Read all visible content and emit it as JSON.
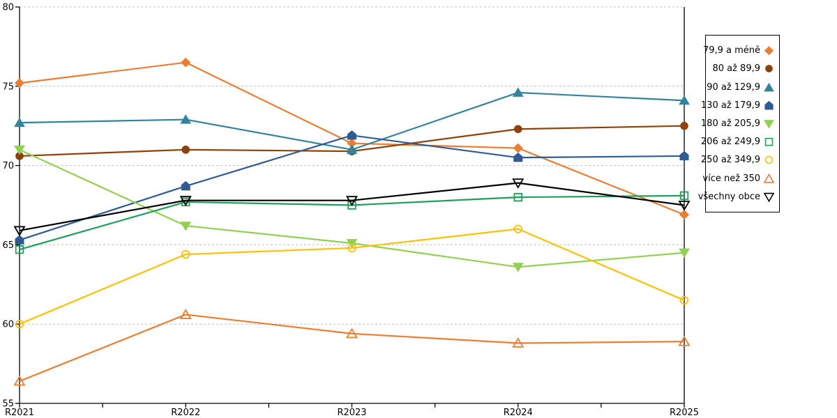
{
  "chart_data": {
    "type": "line",
    "title": "",
    "xlabel": "",
    "ylabel": "",
    "categories": [
      "R2021",
      "R2022",
      "R2023",
      "R2024",
      "R2025"
    ],
    "series": [
      {
        "name": "79,9 a méně",
        "color": "#ED7D31",
        "marker": "diamond",
        "fill": "solid",
        "values": [
          75.2,
          76.5,
          71.4,
          71.1,
          66.9
        ]
      },
      {
        "name": "80 až 89,9",
        "color": "#8F4108",
        "marker": "circle",
        "fill": "solid",
        "values": [
          70.6,
          71.0,
          70.9,
          72.3,
          72.5
        ]
      },
      {
        "name": "90 až 129,9",
        "color": "#31849B",
        "marker": "triangle-up",
        "fill": "solid",
        "values": [
          72.7,
          72.9,
          71.0,
          74.6,
          74.1
        ]
      },
      {
        "name": "130 až 179,9",
        "color": "#2F5B95",
        "marker": "pentagon",
        "fill": "solid",
        "values": [
          65.3,
          68.7,
          71.9,
          70.5,
          70.6
        ]
      },
      {
        "name": "180 až 205,9",
        "color": "#92D050",
        "marker": "triangle-down",
        "fill": "solid",
        "values": [
          71.0,
          66.2,
          65.1,
          63.6,
          64.5
        ]
      },
      {
        "name": "206 až 249,9",
        "color": "#1FA05A",
        "marker": "square",
        "fill": "hollow",
        "values": [
          64.7,
          67.7,
          67.5,
          68.0,
          68.1
        ]
      },
      {
        "name": "250 až 349,9",
        "color": "#FFC000",
        "marker": "circle",
        "fill": "hollow",
        "values": [
          60.0,
          64.4,
          64.8,
          66.0,
          61.5
        ]
      },
      {
        "name": "více než 350",
        "color": "#ED7D31",
        "marker": "triangle-up",
        "fill": "hollow",
        "values": [
          56.4,
          60.6,
          59.4,
          58.8,
          58.9
        ]
      },
      {
        "name": "všechny obce",
        "color": "#000000",
        "marker": "triangle-down",
        "fill": "hollow",
        "values": [
          65.9,
          67.8,
          67.8,
          68.9,
          67.5
        ]
      }
    ],
    "ylim": [
      55,
      80
    ],
    "ytick_labels": [
      "55",
      "60",
      "65",
      "70",
      "75",
      "80"
    ],
    "grid": "horizontal-dashed",
    "legend_position": "right",
    "colors": {
      "gridline": "#BFBFBF",
      "axis": "#000000",
      "background": "#FFFFFF"
    }
  }
}
